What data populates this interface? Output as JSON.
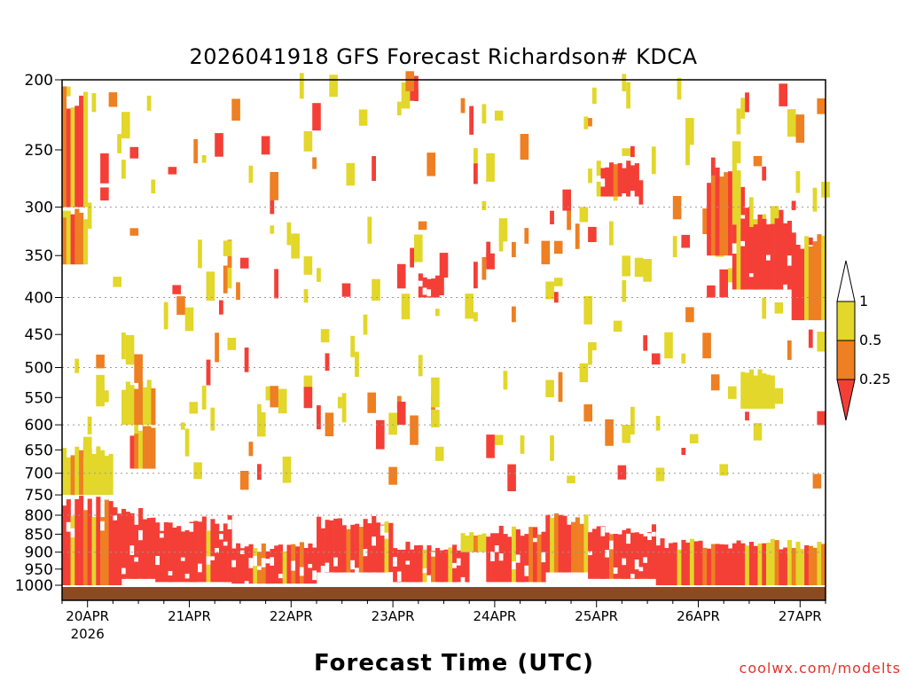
{
  "chart_data": {
    "type": "heatmap",
    "title": "2026041918 GFS Forecast Richardson# KDCA",
    "xlabel": "Forecast Time (UTC)",
    "ylabel": "",
    "credit": "coolwx.com/modelts",
    "y_scale": "log-pressure (hPa, inverted)",
    "ylim": [
      1000,
      200
    ],
    "yticks": [
      200,
      250,
      300,
      350,
      400,
      450,
      500,
      550,
      600,
      650,
      700,
      750,
      800,
      850,
      900,
      950,
      1000
    ],
    "xticks": [
      {
        "label": "20APR",
        "sublabel": "2026",
        "time": 6
      },
      {
        "label": "21APR",
        "sublabel": "",
        "time": 30
      },
      {
        "label": "22APR",
        "sublabel": "",
        "time": 54
      },
      {
        "label": "23APR",
        "sublabel": "",
        "time": 78
      },
      {
        "label": "24APR",
        "sublabel": "",
        "time": 102
      },
      {
        "label": "25APR",
        "sublabel": "",
        "time": 126
      },
      {
        "label": "26APR",
        "sublabel": "",
        "time": 150
      },
      {
        "label": "27APR",
        "sublabel": "",
        "time": 174
      }
    ],
    "x_range_hours": [
      0,
      180
    ],
    "dotted_gridlines": [
      300,
      400,
      500,
      600,
      700,
      800,
      900
    ],
    "legend": {
      "position": "right",
      "levels": [
        {
          "label": "1",
          "value": 1,
          "color": "#ffffff"
        },
        {
          "label": "0.5",
          "value": 0.5,
          "color": "#e2d72a"
        },
        {
          "label": "0.25",
          "value": 0.25,
          "color": "#ee7f22"
        },
        {
          "label": "",
          "value": 0,
          "color": "#f43f37"
        }
      ]
    },
    "colors": {
      "below_0_25": "#f43f37",
      "0_25_to_0_5": "#ee7f22",
      "0_5_to_1": "#e2d72a",
      "ground": "#8b4a20"
    },
    "regions": [
      {
        "t0": 0,
        "t1": 6,
        "p_top": 200,
        "p_bot": 300,
        "class": "mix"
      },
      {
        "t0": 0,
        "t1": 6,
        "p_top": 300,
        "p_bot": 360,
        "class": "orange"
      },
      {
        "t0": 0,
        "t1": 12,
        "p_top": 640,
        "p_bot": 750,
        "class": "yellow"
      },
      {
        "t0": 0,
        "t1": 14,
        "p_top": 750,
        "p_bot": 1000,
        "class": "red"
      },
      {
        "t0": 14,
        "t1": 22,
        "p_top": 520,
        "p_bot": 600,
        "class": "yellow"
      },
      {
        "t0": 16,
        "t1": 22,
        "p_top": 600,
        "p_bot": 690,
        "class": "orange"
      },
      {
        "t0": 14,
        "t1": 22,
        "p_top": 780,
        "p_bot": 980,
        "class": "red"
      },
      {
        "t0": 22,
        "t1": 40,
        "p_top": 800,
        "p_bot": 990,
        "class": "red"
      },
      {
        "t0": 40,
        "t1": 60,
        "p_top": 870,
        "p_bot": 995,
        "class": "red"
      },
      {
        "t0": 60,
        "t1": 78,
        "p_top": 800,
        "p_bot": 960,
        "class": "red"
      },
      {
        "t0": 78,
        "t1": 96,
        "p_top": 870,
        "p_bot": 990,
        "class": "red"
      },
      {
        "t0": 94,
        "t1": 100,
        "p_top": 840,
        "p_bot": 900,
        "class": "yellow"
      },
      {
        "t0": 84,
        "t1": 90,
        "p_top": 370,
        "p_bot": 400,
        "class": "red"
      },
      {
        "t0": 100,
        "t1": 114,
        "p_top": 820,
        "p_bot": 990,
        "class": "red"
      },
      {
        "t0": 114,
        "t1": 124,
        "p_top": 790,
        "p_bot": 960,
        "class": "mix"
      },
      {
        "t0": 124,
        "t1": 140,
        "p_top": 820,
        "p_bot": 980,
        "class": "red"
      },
      {
        "t0": 126,
        "t1": 136,
        "p_top": 258,
        "p_bot": 290,
        "class": "red"
      },
      {
        "t0": 140,
        "t1": 180,
        "p_top": 860,
        "p_bot": 1000,
        "class": "mix"
      },
      {
        "t0": 152,
        "t1": 160,
        "p_top": 258,
        "p_bot": 350,
        "class": "mix"
      },
      {
        "t0": 158,
        "t1": 172,
        "p_top": 300,
        "p_bot": 390,
        "class": "red"
      },
      {
        "t0": 172,
        "t1": 180,
        "p_top": 320,
        "p_bot": 430,
        "class": "mix"
      },
      {
        "t0": 160,
        "t1": 168,
        "p_top": 500,
        "p_bot": 570,
        "class": "yellow"
      }
    ]
  }
}
